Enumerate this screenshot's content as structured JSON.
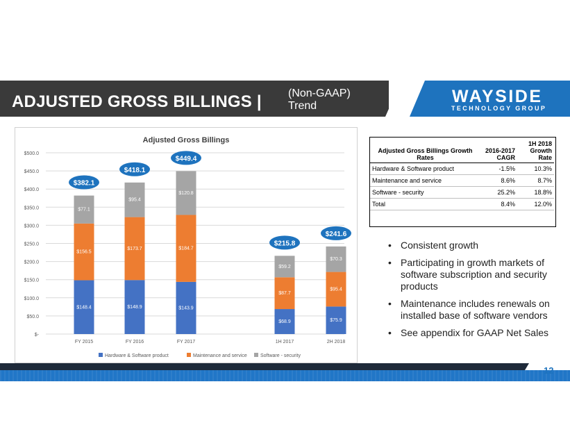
{
  "header": {
    "title": "ADJUSTED GROSS BILLINGS |",
    "subtitle_line1": "(Non-GAAP)",
    "subtitle_line2": "Trend",
    "logo_main": "WAYSIDE",
    "logo_sub": "TECHNOLOGY GROUP",
    "accent_color": "#1e73be"
  },
  "chart_data": {
    "type": "bar",
    "stacked": true,
    "title": "Adjusted Gross Billings",
    "categories": [
      "FY 2015",
      "FY 2016",
      "FY 2017",
      "1H 2017",
      "2H 2018"
    ],
    "series": [
      {
        "name": "Hardware & Software product",
        "color": "#4472c4",
        "values": [
          148.4,
          148.9,
          143.9,
          68.9,
          75.9
        ],
        "labels": [
          "$148.4",
          "$148.9",
          "$143.9",
          "$68.9",
          "$75.9"
        ]
      },
      {
        "name": "Maintenance and service",
        "color": "#ed7d31",
        "values": [
          156.5,
          173.7,
          184.7,
          87.7,
          95.4
        ],
        "labels": [
          "$156.5",
          "$173.7",
          "$184.7",
          "$87.7",
          "$95.4"
        ]
      },
      {
        "name": "Software - security",
        "color": "#a5a5a5",
        "values": [
          77.1,
          95.4,
          120.8,
          59.2,
          70.3
        ],
        "labels": [
          "$77.1",
          "$95.4",
          "$120.8",
          "$59.2",
          "$70.3"
        ]
      }
    ],
    "totals": [
      "$382.1",
      "$418.1",
      "$449.4",
      "$215.8",
      "$241.6"
    ],
    "totals_values": [
      382.1,
      418.1,
      449.4,
      215.8,
      241.6
    ],
    "ylim": [
      0,
      500
    ],
    "yticks": [
      0,
      50,
      100,
      150,
      200,
      250,
      300,
      350,
      400,
      450,
      500
    ],
    "ytick_labels": [
      "$-",
      "$50.0",
      "$100.0",
      "$150.0",
      "$200.0",
      "$250.0",
      "$300.0",
      "$350.0",
      "$400.0",
      "$450.0",
      "$500.0"
    ],
    "grid": true,
    "legend": "bottom",
    "total_bubble_color": "#1e73be"
  },
  "growth_table": {
    "headers": [
      "Adjusted Gross Billings Growth Rates",
      "2016-2017 CAGR",
      "1H 2018 Growth Rate"
    ],
    "rows": [
      [
        "Hardware & Software product",
        "-1.5%",
        "10.3%"
      ],
      [
        "Maintenance and service",
        "8.6%",
        "8.7%"
      ],
      [
        "Software - security",
        "25.2%",
        "18.8%"
      ],
      [
        "Total",
        "8.4%",
        "12.0%"
      ]
    ]
  },
  "bullets": [
    "Consistent growth",
    "Participating in growth markets of software subscription and security products",
    "Maintenance includes renewals on installed base of software vendors",
    "See appendix for GAAP Net Sales"
  ],
  "footer": {
    "page_number": "12"
  }
}
